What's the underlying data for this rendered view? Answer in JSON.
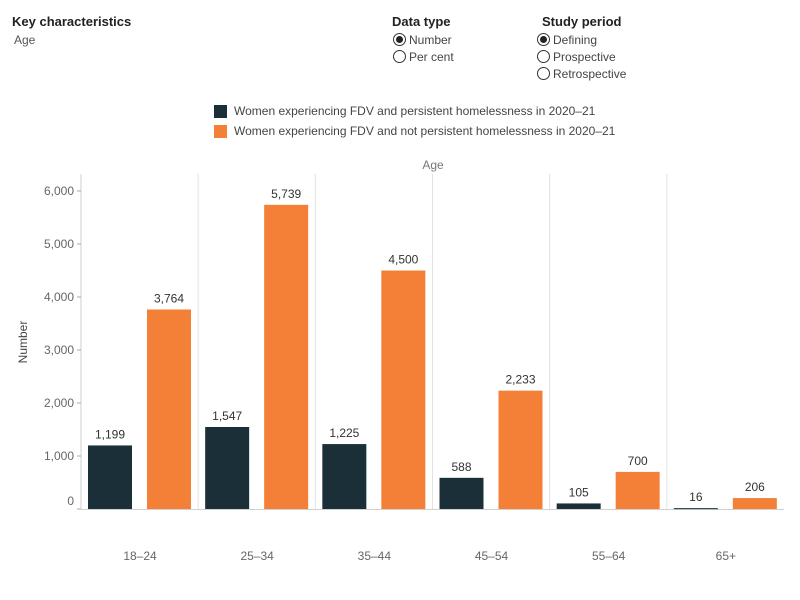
{
  "filters": {
    "key_characteristics": {
      "title": "Key characteristics",
      "value": "Age"
    },
    "data_type": {
      "title": "Data type",
      "options": [
        "Number",
        "Per cent"
      ],
      "selected": 0
    },
    "study_period": {
      "title": "Study period",
      "options": [
        "Defining",
        "Prospective",
        "Retrospective"
      ],
      "selected": 0
    }
  },
  "colors": {
    "persistent": "#1b2f38",
    "not_persistent": "#f47f37"
  },
  "chart_data": {
    "type": "bar",
    "title": "Age",
    "xlabel": "",
    "ylabel": "Number",
    "categories": [
      "18–24",
      "25–34",
      "35–44",
      "45–54",
      "55–64",
      "65+"
    ],
    "series": [
      {
        "name": "Women experiencing FDV and persistent homelessness in 2020–21",
        "values": [
          1199,
          1547,
          1225,
          588,
          105,
          16
        ]
      },
      {
        "name": "Women experiencing FDV and not persistent homelessness in 2020–21",
        "values": [
          3764,
          5739,
          4500,
          2233,
          700,
          206
        ]
      }
    ],
    "value_labels": [
      [
        "1,199",
        "1,547",
        "1,225",
        "588",
        "105",
        "16"
      ],
      [
        "3,764",
        "5,739",
        "4,500",
        "2,233",
        "700",
        "206"
      ]
    ],
    "yticks": [
      0,
      1000,
      2000,
      3000,
      4000,
      5000,
      6000
    ],
    "ytick_labels": [
      "0",
      "1,000",
      "2,000",
      "3,000",
      "4,000",
      "5,000",
      "6,000"
    ],
    "ylim": [
      0,
      6500
    ],
    "grid": false,
    "legend_position": "top"
  }
}
